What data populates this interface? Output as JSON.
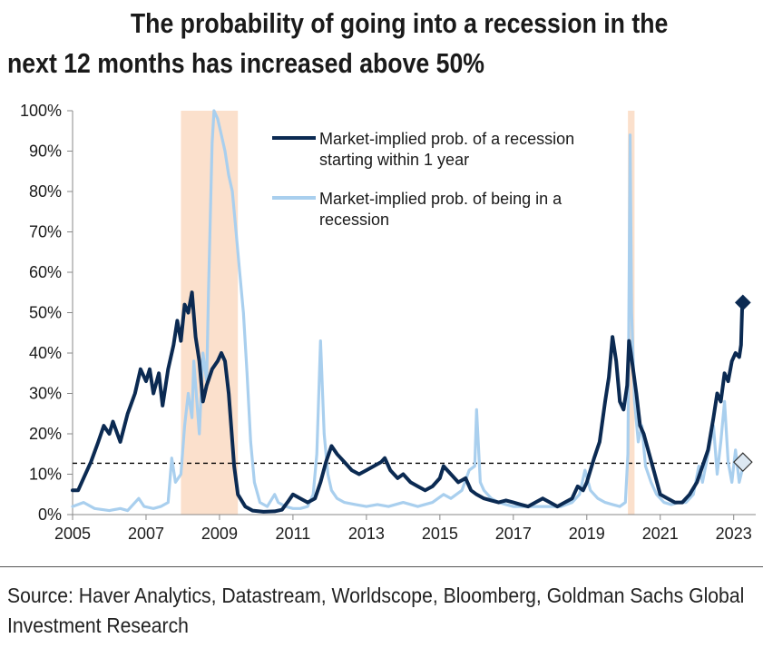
{
  "title": {
    "line1": "The probability of going into a recession in the",
    "line2": "next 12 months has increased above 50%"
  },
  "source": {
    "line1": "Source: Haver Analytics, Datastream, Worldscope, Bloomberg, Goldman Sachs Global",
    "line2": "Investment Research"
  },
  "chart_data": {
    "type": "line",
    "xlim": [
      2005,
      2023.6
    ],
    "ylim": [
      0,
      100
    ],
    "x_ticks": [
      2005,
      2007,
      2009,
      2011,
      2013,
      2015,
      2017,
      2019,
      2021,
      2023
    ],
    "y_ticks": [
      0,
      10,
      20,
      30,
      40,
      50,
      60,
      70,
      80,
      90,
      100
    ],
    "y_tick_labels": [
      "0%",
      "10%",
      "20%",
      "30%",
      "40%",
      "50%",
      "60%",
      "70%",
      "80%",
      "90%",
      "100%"
    ],
    "grid": false,
    "legend_position": "top-center",
    "recession_shading": [
      {
        "start": 2007.95,
        "end": 2009.5,
        "color": "#fbe0cc"
      },
      {
        "start": 2020.12,
        "end": 2020.3,
        "color": "#fbe0cc"
      }
    ],
    "reference_line": {
      "y": 12.7,
      "style": "dashed",
      "color": "#000000"
    },
    "series": [
      {
        "name": "Market-implied prob. of a recession starting within 1 year",
        "color": "#0b2a52",
        "end_marker": {
          "shape": "diamond",
          "x": 2023.25,
          "y": 52.5,
          "fill": "#0b2a52"
        },
        "points": [
          [
            2005.0,
            6
          ],
          [
            2005.15,
            6
          ],
          [
            2005.3,
            9
          ],
          [
            2005.5,
            13
          ],
          [
            2005.7,
            18
          ],
          [
            2005.85,
            22
          ],
          [
            2006.0,
            20
          ],
          [
            2006.1,
            23
          ],
          [
            2006.3,
            18
          ],
          [
            2006.5,
            25
          ],
          [
            2006.7,
            30
          ],
          [
            2006.85,
            36
          ],
          [
            2007.0,
            33
          ],
          [
            2007.1,
            36
          ],
          [
            2007.2,
            30
          ],
          [
            2007.35,
            35
          ],
          [
            2007.45,
            27
          ],
          [
            2007.6,
            36
          ],
          [
            2007.75,
            42
          ],
          [
            2007.85,
            48
          ],
          [
            2007.95,
            43
          ],
          [
            2008.05,
            52
          ],
          [
            2008.15,
            50
          ],
          [
            2008.25,
            55
          ],
          [
            2008.35,
            44
          ],
          [
            2008.45,
            38
          ],
          [
            2008.55,
            28
          ],
          [
            2008.65,
            32
          ],
          [
            2008.8,
            36
          ],
          [
            2008.95,
            38
          ],
          [
            2009.05,
            40
          ],
          [
            2009.15,
            38
          ],
          [
            2009.25,
            30
          ],
          [
            2009.4,
            12
          ],
          [
            2009.5,
            5
          ],
          [
            2009.7,
            2
          ],
          [
            2009.9,
            1
          ],
          [
            2010.2,
            0.7
          ],
          [
            2010.5,
            0.8
          ],
          [
            2010.7,
            1.2
          ],
          [
            2010.85,
            3
          ],
          [
            2011.0,
            5
          ],
          [
            2011.2,
            4
          ],
          [
            2011.4,
            3
          ],
          [
            2011.6,
            4
          ],
          [
            2011.75,
            8
          ],
          [
            2011.9,
            13
          ],
          [
            2012.05,
            17
          ],
          [
            2012.2,
            15
          ],
          [
            2012.4,
            13
          ],
          [
            2012.6,
            11
          ],
          [
            2012.8,
            10
          ],
          [
            2013.0,
            11
          ],
          [
            2013.2,
            12
          ],
          [
            2013.4,
            13
          ],
          [
            2013.5,
            14
          ],
          [
            2013.65,
            11
          ],
          [
            2013.85,
            9
          ],
          [
            2014.0,
            10
          ],
          [
            2014.2,
            8
          ],
          [
            2014.4,
            7
          ],
          [
            2014.6,
            6
          ],
          [
            2014.8,
            7
          ],
          [
            2015.0,
            9
          ],
          [
            2015.1,
            12
          ],
          [
            2015.3,
            10
          ],
          [
            2015.5,
            8
          ],
          [
            2015.7,
            9
          ],
          [
            2015.85,
            6
          ],
          [
            2016.0,
            5
          ],
          [
            2016.2,
            4
          ],
          [
            2016.4,
            3.5
          ],
          [
            2016.6,
            3
          ],
          [
            2016.8,
            3.5
          ],
          [
            2017.0,
            3
          ],
          [
            2017.2,
            2.5
          ],
          [
            2017.4,
            2
          ],
          [
            2017.6,
            3
          ],
          [
            2017.8,
            4
          ],
          [
            2018.0,
            3
          ],
          [
            2018.2,
            2
          ],
          [
            2018.4,
            3
          ],
          [
            2018.6,
            4
          ],
          [
            2018.75,
            7
          ],
          [
            2018.9,
            6
          ],
          [
            2019.0,
            8
          ],
          [
            2019.2,
            14
          ],
          [
            2019.35,
            18
          ],
          [
            2019.5,
            28
          ],
          [
            2019.6,
            34
          ],
          [
            2019.7,
            44
          ],
          [
            2019.8,
            38
          ],
          [
            2019.9,
            28
          ],
          [
            2020.0,
            26
          ],
          [
            2020.1,
            32
          ],
          [
            2020.15,
            43
          ],
          [
            2020.2,
            40
          ],
          [
            2020.35,
            30
          ],
          [
            2020.45,
            22
          ],
          [
            2020.55,
            20
          ],
          [
            2020.7,
            15
          ],
          [
            2020.85,
            10
          ],
          [
            2021.0,
            5
          ],
          [
            2021.2,
            4
          ],
          [
            2021.4,
            3
          ],
          [
            2021.6,
            3
          ],
          [
            2021.8,
            5
          ],
          [
            2022.0,
            8
          ],
          [
            2022.15,
            12
          ],
          [
            2022.3,
            16
          ],
          [
            2022.45,
            24
          ],
          [
            2022.55,
            30
          ],
          [
            2022.65,
            28
          ],
          [
            2022.75,
            35
          ],
          [
            2022.85,
            33
          ],
          [
            2022.95,
            38
          ],
          [
            2023.05,
            40
          ],
          [
            2023.15,
            39
          ],
          [
            2023.2,
            42
          ],
          [
            2023.23,
            51
          ]
        ]
      },
      {
        "name": "Market-implied prob. of being in a recession",
        "color": "#a9cfee",
        "end_marker": {
          "shape": "diamond",
          "x": 2023.25,
          "y": 13,
          "fill": "#dde8f2"
        },
        "points": [
          [
            2005.0,
            2
          ],
          [
            2005.3,
            3
          ],
          [
            2005.6,
            1.5
          ],
          [
            2006.0,
            1
          ],
          [
            2006.3,
            1.5
          ],
          [
            2006.5,
            1
          ],
          [
            2006.8,
            4
          ],
          [
            2006.95,
            2
          ],
          [
            2007.2,
            1.5
          ],
          [
            2007.4,
            2
          ],
          [
            2007.6,
            3
          ],
          [
            2007.7,
            14
          ],
          [
            2007.8,
            8
          ],
          [
            2007.95,
            10
          ],
          [
            2008.05,
            22
          ],
          [
            2008.15,
            30
          ],
          [
            2008.25,
            24
          ],
          [
            2008.3,
            38
          ],
          [
            2008.45,
            20
          ],
          [
            2008.55,
            40
          ],
          [
            2008.65,
            33
          ],
          [
            2008.7,
            55
          ],
          [
            2008.8,
            92
          ],
          [
            2008.85,
            100
          ],
          [
            2008.95,
            98
          ],
          [
            2009.05,
            94
          ],
          [
            2009.15,
            90
          ],
          [
            2009.25,
            84
          ],
          [
            2009.35,
            80
          ],
          [
            2009.45,
            70
          ],
          [
            2009.55,
            60
          ],
          [
            2009.65,
            50
          ],
          [
            2009.75,
            35
          ],
          [
            2009.85,
            18
          ],
          [
            2009.95,
            8
          ],
          [
            2010.1,
            3
          ],
          [
            2010.3,
            2
          ],
          [
            2010.5,
            5
          ],
          [
            2010.6,
            3
          ],
          [
            2010.8,
            2
          ],
          [
            2011.0,
            1.5
          ],
          [
            2011.2,
            1.5
          ],
          [
            2011.4,
            2
          ],
          [
            2011.55,
            5
          ],
          [
            2011.65,
            15
          ],
          [
            2011.75,
            43
          ],
          [
            2011.85,
            20
          ],
          [
            2011.95,
            10
          ],
          [
            2012.05,
            6
          ],
          [
            2012.2,
            4
          ],
          [
            2012.4,
            3
          ],
          [
            2012.7,
            2.5
          ],
          [
            2013.0,
            2
          ],
          [
            2013.3,
            2.5
          ],
          [
            2013.6,
            2
          ],
          [
            2014.0,
            3
          ],
          [
            2014.4,
            2
          ],
          [
            2014.8,
            3
          ],
          [
            2015.1,
            5
          ],
          [
            2015.3,
            4
          ],
          [
            2015.6,
            6
          ],
          [
            2015.8,
            11
          ],
          [
            2015.95,
            12
          ],
          [
            2016.0,
            26
          ],
          [
            2016.1,
            8
          ],
          [
            2016.2,
            6
          ],
          [
            2016.4,
            4
          ],
          [
            2016.6,
            3
          ],
          [
            2016.8,
            2.5
          ],
          [
            2017.0,
            2
          ],
          [
            2017.3,
            2
          ],
          [
            2017.6,
            2
          ],
          [
            2018.0,
            2
          ],
          [
            2018.3,
            2
          ],
          [
            2018.6,
            3
          ],
          [
            2018.8,
            5
          ],
          [
            2018.95,
            11
          ],
          [
            2019.1,
            6
          ],
          [
            2019.3,
            4
          ],
          [
            2019.5,
            3
          ],
          [
            2019.7,
            2.5
          ],
          [
            2019.9,
            2
          ],
          [
            2020.05,
            3
          ],
          [
            2020.12,
            15
          ],
          [
            2020.18,
            94
          ],
          [
            2020.22,
            50
          ],
          [
            2020.3,
            28
          ],
          [
            2020.4,
            18
          ],
          [
            2020.5,
            22
          ],
          [
            2020.6,
            12
          ],
          [
            2020.75,
            8
          ],
          [
            2020.9,
            5
          ],
          [
            2021.1,
            3
          ],
          [
            2021.3,
            2.5
          ],
          [
            2021.5,
            3
          ],
          [
            2021.7,
            3
          ],
          [
            2021.9,
            5
          ],
          [
            2022.05,
            12
          ],
          [
            2022.15,
            8
          ],
          [
            2022.3,
            15
          ],
          [
            2022.45,
            22
          ],
          [
            2022.55,
            10
          ],
          [
            2022.65,
            18
          ],
          [
            2022.75,
            28
          ],
          [
            2022.85,
            13
          ],
          [
            2022.95,
            8
          ],
          [
            2023.05,
            16
          ],
          [
            2023.15,
            8
          ],
          [
            2023.23,
            11
          ]
        ]
      }
    ]
  }
}
